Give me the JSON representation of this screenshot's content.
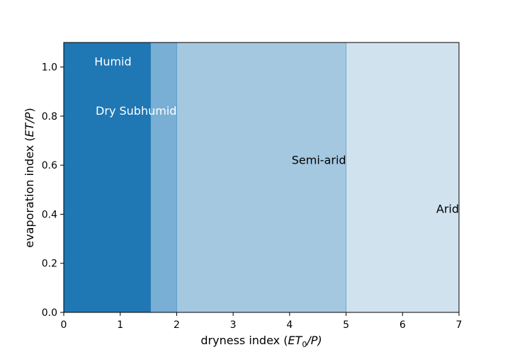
{
  "chart_data": {
    "type": "area",
    "xlabel": {
      "pre": "dryness index (",
      "var": "ET",
      "sub": "0",
      "post": "/P)"
    },
    "ylabel": {
      "pre": "evaporation index (",
      "var": "ET/P",
      "post": ")"
    },
    "xlim": [
      0,
      7
    ],
    "ylim": [
      0,
      1.1
    ],
    "xticks": [
      0,
      1,
      2,
      3,
      4,
      5,
      6,
      7
    ],
    "yticks": [
      0.0,
      0.2,
      0.4,
      0.6,
      0.8,
      1.0
    ],
    "grid": false,
    "regions": [
      {
        "name": "Humid",
        "x_start": 0,
        "x_end": 1.54,
        "color": "#1f77b4",
        "label_x": 1.2,
        "label_y": 1.02,
        "label_align": "end",
        "label_color": "#ffffff"
      },
      {
        "name": "Dry Subhumid",
        "x_start": 1.54,
        "x_end": 2.0,
        "color": "#79aed5",
        "label_x": 2.0,
        "label_y": 0.82,
        "label_align": "end",
        "label_color": "#ffffff"
      },
      {
        "name": "Semi-arid",
        "x_start": 2.0,
        "x_end": 5.0,
        "color": "#a5c8e1",
        "label_x": 5.0,
        "label_y": 0.62,
        "label_align": "end",
        "label_color": "#000000"
      },
      {
        "name": "Arid",
        "x_start": 5.0,
        "x_end": 7.0,
        "color": "#d1e2ef",
        "label_x": 7.0,
        "label_y": 0.42,
        "label_align": "end",
        "label_color": "#000000"
      }
    ]
  }
}
